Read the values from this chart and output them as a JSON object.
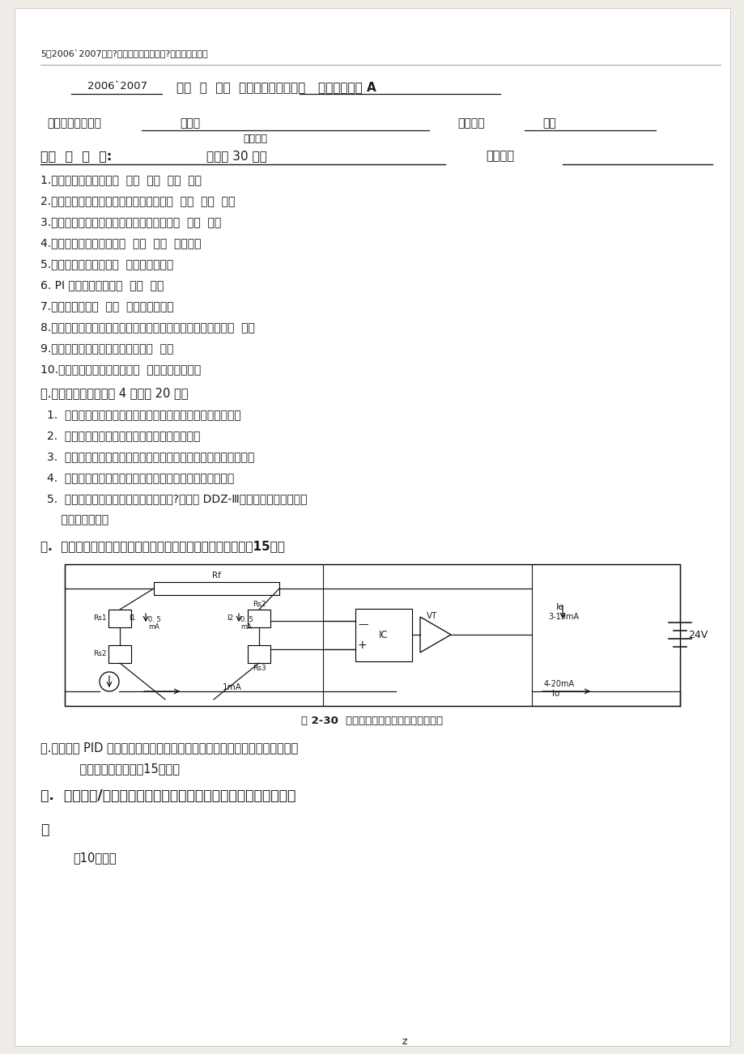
{
  "bg_color": "#f0ede8",
  "page_bg": "#ffffff",
  "text_color": "#1a1a1a",
  "line1": "5、2006`2007年度?自动控制仪表与装置?考试试题与答案",
  "header_year": "2006`2007",
  "header_bold": "学年  二  学期  自动控制仪表及装置   课程考试试题 A",
  "dept_label": "拟题学院（系）：",
  "dept_value": "自动化",
  "dept_sub": "测控专业",
  "author_label": "拟题人：",
  "author_value": "彦军",
  "sec1_title": "一适  用  专  业:",
  "sec1_title2": "分，共 30 分）",
  "verify_label": "校对人：",
  "q1": "1.调节阀的理想特性有（  ）（  ）（  ）（  ）；",
  "q2": "2.工程上常用的控制仪表信号传输方式有（  ）（  ）（  ）；",
  "q3": "3.变送器与控制室仪表间的信号连接方式有（  ）（  ）；",
  "q4": "4.电气设备的防爆等级为（  ）（  ）（  ）三种；",
  "q5": "5.齐纳式平安栅是基于（  ）性能工作的；",
  "q6": "6. PI 调节器的特点是（  ）（  ）；",
  "q7": "7.气动执行器由（  ）（  ）两局部组成；",
  "q8": "8.在变送器构成上深度负反应是为保证输入输出之间具有很好（  ）；",
  "q9": "9.常温下利用热电偶测温必须考虑（  ）；",
  "q10": "10.电容式差压变送器是利用（  ）作为检测元件；",
  "sec2_title": "二.解答以下各题（每题 4 分，共 20 分）",
  "s2q1": "1.  画出光电隔离式平安栅的原理电路图，并说明其工作原理。",
  "s2q2": "2.  试述电容式差压变送器测量局部的工作原理。",
  "s2q3": "3.  画出电动执行器中伺服放大器的原理框图，并表达其工作原理。",
  "s2q4": "4.  试述变送器中调量程、零点以及零点迁移的意义和方法。",
  "s2q5": "5.  解释开方器为何要设小信号切除电路?并说明 DDZ-Ⅲ型开方器的小信号切除",
  "s2q5b": "    电路工作原理。",
  "sec3_title": "三.  扩散硜式差压变送器的电器原理如下图，试述其工作原理（15）。",
  "fig_caption": "图 2-30  扩散硜式差压变送器电路原理简图",
  "sec4_title": "四.写出理想 PID 调节器的时域运算规律表达式，划出其阶跃响应曲线并说明其",
  "sec4b": "    特点及应用场合。（15分）。",
  "sec5_title": "五.  如图为电/气转换器的原理构造图，试述其工作原理及其应用场",
  "sec5b": "合",
  "sec5c": "（10分）。",
  "footer": "z"
}
